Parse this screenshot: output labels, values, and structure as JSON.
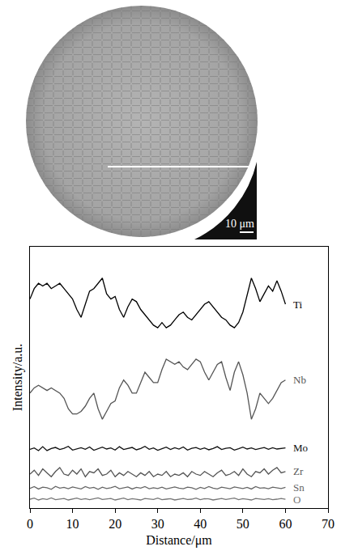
{
  "chart_data": {
    "type": "line",
    "x_label": "Distance/μm",
    "y_label": "Intensity/a.u.",
    "xlim": [
      0,
      70
    ],
    "xticks": [
      0,
      10,
      20,
      30,
      40,
      50,
      60,
      70
    ],
    "ylim": [
      0,
      100
    ],
    "yticks": [],
    "tick_labels": "x",
    "grid": false,
    "x": [
      0,
      1,
      2,
      3,
      4,
      5,
      6,
      7,
      8,
      9,
      10,
      11,
      12,
      13,
      14,
      15,
      16,
      17,
      18,
      19,
      20,
      21,
      22,
      23,
      24,
      25,
      26,
      27,
      28,
      29,
      30,
      31,
      32,
      33,
      34,
      35,
      36,
      37,
      38,
      39,
      40,
      41,
      42,
      43,
      44,
      45,
      46,
      47,
      48,
      49,
      50,
      51,
      52,
      53,
      54,
      55,
      56,
      57,
      58,
      59,
      60
    ],
    "series": [
      {
        "name": "Ti",
        "color": "#000000",
        "values": [
          80,
          84,
          86,
          85,
          86,
          84,
          85,
          86,
          84,
          82,
          80,
          76,
          73,
          78,
          83,
          84,
          86,
          88,
          82,
          80,
          81,
          76,
          73,
          77,
          80,
          79,
          76,
          74,
          72,
          70,
          69,
          71,
          69,
          70,
          72,
          74,
          75,
          73,
          72,
          74,
          76,
          78,
          79,
          77,
          75,
          73,
          72,
          70,
          69,
          71,
          75,
          82,
          88,
          84,
          79,
          82,
          85,
          83,
          87,
          83,
          78
        ]
      },
      {
        "name": "Nb",
        "color": "#555555",
        "values": [
          44,
          46,
          47,
          46,
          45,
          46,
          45,
          44,
          42,
          38,
          36,
          36,
          37,
          39,
          42,
          44,
          38,
          34,
          37,
          40,
          41,
          46,
          49,
          47,
          44,
          44,
          48,
          52,
          50,
          48,
          48,
          53,
          57,
          56,
          55,
          56,
          54,
          53,
          55,
          57,
          56,
          52,
          49,
          52,
          55,
          56,
          50,
          45,
          52,
          56,
          51,
          44,
          34,
          38,
          44,
          42,
          40,
          42,
          45,
          48,
          49
        ]
      },
      {
        "name": "Mo",
        "color": "#111111",
        "values": [
          22.5,
          23,
          22,
          23.5,
          22,
          22.8,
          23.2,
          22.4,
          22.9,
          23.6,
          22.2,
          22.7,
          23.1,
          22.5,
          23.4,
          22.1,
          22.8,
          23.3,
          22.6,
          23,
          22.2,
          23.5,
          22.4,
          22.9,
          23.2,
          22.3,
          22.8,
          23.6,
          22.5,
          23,
          22.1,
          22.7,
          23.3,
          22.4,
          23.1,
          22.6,
          23.4,
          22.2,
          22.9,
          23.2,
          22.5,
          23,
          22.3,
          22.8,
          23.5,
          22.4,
          22.9,
          23.1,
          22.2,
          22.7,
          23.3,
          22.6,
          23,
          22.4,
          22.9,
          23.2,
          22.5,
          23.1,
          22.6,
          22.9,
          23
        ]
      },
      {
        "name": "Zr",
        "color": "#555555",
        "values": [
          13,
          14.5,
          12.5,
          15,
          13.5,
          12,
          14,
          15.5,
          13,
          12.5,
          14.5,
          13,
          15,
          12,
          14,
          13.5,
          15,
          12.5,
          13,
          14.5,
          12,
          13.5,
          12.5,
          14,
          13,
          12,
          13.5,
          12.5,
          14,
          12,
          13,
          12.5,
          14,
          12,
          13,
          12.5,
          13.5,
          12,
          14,
          13,
          12.5,
          14,
          13,
          12,
          13.5,
          14.5,
          12.5,
          13,
          14,
          12.5,
          15,
          13,
          12,
          14,
          13.5,
          15,
          13,
          14.5,
          15.5,
          13.5,
          14
        ]
      },
      {
        "name": "Sn",
        "color": "#666666",
        "values": [
          7.5,
          8.2,
          7.3,
          8,
          7.8,
          7.2,
          8.3,
          7.6,
          7.9,
          7.4,
          8.1,
          7.7,
          7.3,
          8.2,
          7.6,
          7.9,
          7.2,
          8,
          7.5,
          7.8,
          8.3,
          7.4,
          7.7,
          8.1,
          7.3,
          7.9,
          7.6,
          8.2,
          7.4,
          7.8,
          7.5,
          8,
          7.3,
          7.7,
          8.1,
          7.6,
          7.4,
          8,
          7.8,
          7.2,
          7.9,
          7.5,
          8.2,
          7.6,
          7.3,
          8,
          7.7,
          7.4,
          8.1,
          7.8,
          7.5,
          7.9,
          7.3,
          8.2,
          7.6,
          7.8,
          7.4,
          8,
          7.7,
          7.5,
          7.9
        ]
      },
      {
        "name": "O",
        "color": "#777777",
        "values": [
          3.4,
          3.8,
          3.1,
          3.6,
          3.3,
          3.9,
          3.2,
          3.5,
          3.7,
          3.1,
          3.4,
          3.8,
          3.3,
          3.6,
          3.2,
          3.5,
          3.9,
          3.3,
          3.4,
          3.7,
          3.1,
          3.5,
          3.8,
          3.2,
          3.6,
          3.4,
          3.1,
          3.7,
          3.5,
          3.3,
          3.8,
          3.2,
          3.4,
          3.6,
          3.1,
          3.5,
          3.7,
          3.3,
          3.4,
          3.8,
          3.2,
          3.6,
          3.5,
          3.1,
          3.4,
          3.7,
          3.3,
          3.5,
          3.8,
          3.2,
          3.6,
          3.4,
          3.1,
          3.7,
          3.5,
          3.3,
          3.6,
          3.2,
          3.4,
          3.7,
          3.4
        ]
      }
    ]
  },
  "micrograph": {
    "scale_bar": "10 μm"
  }
}
